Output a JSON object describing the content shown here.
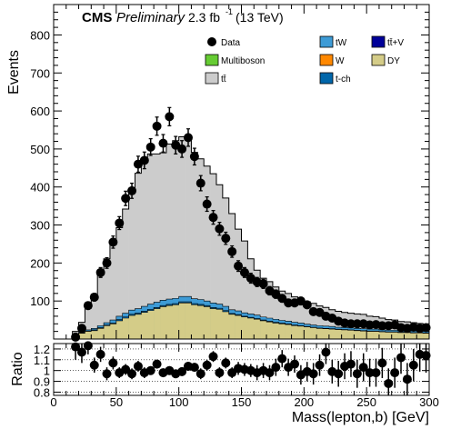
{
  "chart_data": {
    "type": "bar",
    "header": {
      "cms": "CMS",
      "preliminary": "Preliminary",
      "lumi": "2.3 fb",
      "lumi_sup": "-1",
      "energy": "(13 TeV)"
    },
    "xlabel": "Mass(lepton,b) [GeV]",
    "ylabel": "Events",
    "ratio_ylabel": "Ratio",
    "xlim": [
      0,
      300
    ],
    "ylim": [
      0,
      880
    ],
    "ratio_ylim": [
      0.77,
      1.25
    ],
    "x_ticks": [
      "0",
      "50",
      "100",
      "150",
      "200",
      "250",
      "300"
    ],
    "y_ticks": [
      "100",
      "200",
      "300",
      "400",
      "500",
      "600",
      "700",
      "800"
    ],
    "ratio_ticks": [
      "0.8",
      "0.9",
      "1",
      "1.1",
      "1.2"
    ],
    "bin_width": 5,
    "bin_low_edges": [
      15,
      20,
      25,
      30,
      35,
      40,
      45,
      50,
      55,
      60,
      65,
      70,
      75,
      80,
      85,
      90,
      95,
      100,
      105,
      110,
      115,
      120,
      125,
      130,
      135,
      140,
      145,
      150,
      155,
      160,
      165,
      170,
      175,
      180,
      185,
      190,
      195,
      200,
      205,
      210,
      215,
      220,
      225,
      230,
      235,
      240,
      245,
      250,
      255,
      260,
      265,
      270,
      275,
      280,
      285,
      290,
      295
    ],
    "legend": {
      "placement": "top-right",
      "entries": [
        {
          "key": "data",
          "label": "Data",
          "style": "marker"
        },
        {
          "key": "tw",
          "label": "tW",
          "style": "box",
          "color": "#3d9bd6"
        },
        {
          "key": "ttv",
          "label": "tt̄+V",
          "style": "box",
          "color": "#000099"
        },
        {
          "key": "multiboson",
          "label": "Multiboson",
          "style": "box",
          "color": "#66cc33"
        },
        {
          "key": "w",
          "label": "W",
          "style": "box",
          "color": "#ff8800"
        },
        {
          "key": "dy",
          "label": "DY",
          "style": "box",
          "color": "#d4cc88"
        },
        {
          "key": "ttbar",
          "label": "tt̄",
          "style": "box",
          "color": "#cccccc"
        },
        {
          "key": "tch",
          "label": "t-ch",
          "style": "box",
          "color": "#0066aa"
        }
      ]
    },
    "series": [
      {
        "key": "dy",
        "color": "#d4cc88",
        "values": [
          8,
          15,
          20,
          22,
          28,
          35,
          40,
          48,
          55,
          62,
          65,
          70,
          75,
          80,
          85,
          88,
          90,
          95,
          95,
          90,
          88,
          85,
          80,
          78,
          72,
          65,
          62,
          58,
          55,
          52,
          48,
          45,
          42,
          40,
          38,
          35,
          34,
          32,
          30,
          28,
          27,
          26,
          25,
          24,
          23,
          22,
          21,
          20,
          20,
          19,
          18,
          18,
          17,
          17,
          16,
          16,
          15
        ]
      },
      {
        "key": "tch",
        "color": "#0066aa",
        "values": [
          1,
          1,
          1,
          2,
          2,
          2,
          2,
          3,
          3,
          3,
          3,
          3,
          3,
          3,
          3,
          3,
          3,
          3,
          3,
          3,
          3,
          3,
          3,
          3,
          3,
          2,
          2,
          2,
          2,
          2,
          2,
          2,
          2,
          2,
          2,
          2,
          1,
          1,
          1,
          1,
          1,
          1,
          1,
          1,
          1,
          1,
          1,
          1,
          1,
          1,
          1,
          1,
          1,
          1,
          1,
          1,
          1
        ]
      },
      {
        "key": "tw",
        "color": "#3d9bd6",
        "values": [
          1,
          2,
          3,
          4,
          5,
          6,
          8,
          9,
          10,
          11,
          12,
          13,
          14,
          14,
          14,
          14,
          14,
          14,
          14,
          13,
          13,
          12,
          12,
          11,
          11,
          10,
          10,
          9,
          9,
          9,
          8,
          8,
          8,
          7,
          7,
          7,
          7,
          6,
          6,
          6,
          6,
          6,
          5,
          5,
          5,
          5,
          5,
          5,
          5,
          4,
          4,
          4,
          4,
          4,
          4,
          4,
          4
        ]
      },
      {
        "key": "ttbar",
        "color": "#cccccc",
        "values": [
          10,
          26,
          57,
          90,
          141,
          168,
          198,
          233,
          274,
          320,
          356,
          390,
          395,
          390,
          388,
          408,
          415,
          420,
          411,
          385,
          370,
          355,
          340,
          314,
          285,
          253,
          215,
          189,
          145,
          118,
          102,
          96,
          85,
          77,
          73,
          67,
          63,
          59,
          57,
          52,
          49,
          44,
          42,
          40,
          39,
          38,
          38,
          34,
          33,
          31,
          28,
          27,
          24,
          23,
          22,
          20,
          19
        ]
      }
    ],
    "data_points": {
      "label": "Data",
      "x": [
        17.5,
        22.5,
        27.5,
        32.5,
        37.5,
        42.5,
        47.5,
        52.5,
        57.5,
        62.5,
        67.5,
        72.5,
        77.5,
        82.5,
        87.5,
        92.5,
        97.5,
        102.5,
        107.5,
        112.5,
        117.5,
        122.5,
        127.5,
        132.5,
        137.5,
        142.5,
        147.5,
        152.5,
        157.5,
        162.5,
        167.5,
        172.5,
        177.5,
        182.5,
        187.5,
        192.5,
        197.5,
        202.5,
        207.5,
        212.5,
        217.5,
        222.5,
        227.5,
        232.5,
        237.5,
        242.5,
        247.5,
        252.5,
        257.5,
        262.5,
        267.5,
        272.5,
        277.5,
        282.5,
        287.5,
        292.5,
        297.5
      ],
      "y": [
        5,
        28,
        88,
        110,
        175,
        200,
        255,
        305,
        370,
        390,
        460,
        470,
        505,
        560,
        515,
        585,
        510,
        500,
        530,
        480,
        410,
        355,
        320,
        290,
        265,
        230,
        192,
        175,
        160,
        150,
        145,
        127,
        118,
        107,
        95,
        95,
        100,
        90,
        72,
        70,
        60,
        55,
        47,
        42,
        40,
        40,
        40,
        37,
        38,
        35,
        35,
        37,
        30,
        28,
        31,
        28,
        30
      ],
      "err": [
        2,
        5,
        9,
        10,
        13,
        14,
        16,
        17,
        19,
        20,
        21,
        22,
        22,
        24,
        23,
        24,
        23,
        22,
        23,
        22,
        20,
        19,
        18,
        17,
        16,
        15,
        14,
        13,
        13,
        12,
        12,
        11,
        11,
        10,
        10,
        10,
        10,
        9,
        8,
        8,
        8,
        7,
        7,
        6,
        6,
        6,
        6,
        6,
        6,
        6,
        6,
        6,
        5,
        5,
        6,
        5,
        5
      ]
    },
    "ratio": {
      "x": [
        17.5,
        22.5,
        27.5,
        32.5,
        37.5,
        42.5,
        47.5,
        52.5,
        57.5,
        62.5,
        67.5,
        72.5,
        77.5,
        82.5,
        87.5,
        92.5,
        97.5,
        102.5,
        107.5,
        112.5,
        117.5,
        122.5,
        127.5,
        132.5,
        137.5,
        142.5,
        147.5,
        152.5,
        157.5,
        162.5,
        167.5,
        172.5,
        177.5,
        182.5,
        187.5,
        192.5,
        197.5,
        202.5,
        207.5,
        212.5,
        217.5,
        222.5,
        227.5,
        232.5,
        237.5,
        242.5,
        247.5,
        252.5,
        257.5,
        262.5,
        267.5,
        272.5,
        277.5,
        282.5,
        287.5,
        292.5,
        297.5
      ],
      "y": [
        1.22,
        1.17,
        1.23,
        1.05,
        1.15,
        0.97,
        1.07,
        0.98,
        1.01,
        0.97,
        1.04,
        0.98,
        1.0,
        1.06,
        0.98,
        1.0,
        0.97,
        0.99,
        1.04,
        1.03,
        0.97,
        1.05,
        1.13,
        0.98,
        1.07,
        0.98,
        1.02,
        1.01,
        1.0,
        0.98,
        1.0,
        0.98,
        1.03,
        1.11,
        1.03,
        1.06,
        0.96,
        0.99,
        0.97,
        1.05,
        1.17,
        0.99,
        0.97,
        1.04,
        1.06,
        0.97,
        1.03,
        0.98,
        0.98,
        1.07,
        0.88,
        0.98,
        1.12,
        0.92,
        1.05,
        1.15,
        1.14
      ],
      "err": [
        0.12,
        0.1,
        0.08,
        0.07,
        0.07,
        0.06,
        0.06,
        0.05,
        0.05,
        0.05,
        0.05,
        0.05,
        0.04,
        0.04,
        0.04,
        0.04,
        0.04,
        0.04,
        0.04,
        0.04,
        0.05,
        0.05,
        0.05,
        0.05,
        0.05,
        0.05,
        0.06,
        0.06,
        0.06,
        0.07,
        0.07,
        0.07,
        0.08,
        0.08,
        0.08,
        0.08,
        0.09,
        0.09,
        0.1,
        0.1,
        0.11,
        0.11,
        0.12,
        0.12,
        0.12,
        0.13,
        0.13,
        0.13,
        0.13,
        0.14,
        0.14,
        0.14,
        0.15,
        0.15,
        0.15,
        0.16,
        0.16
      ]
    }
  }
}
